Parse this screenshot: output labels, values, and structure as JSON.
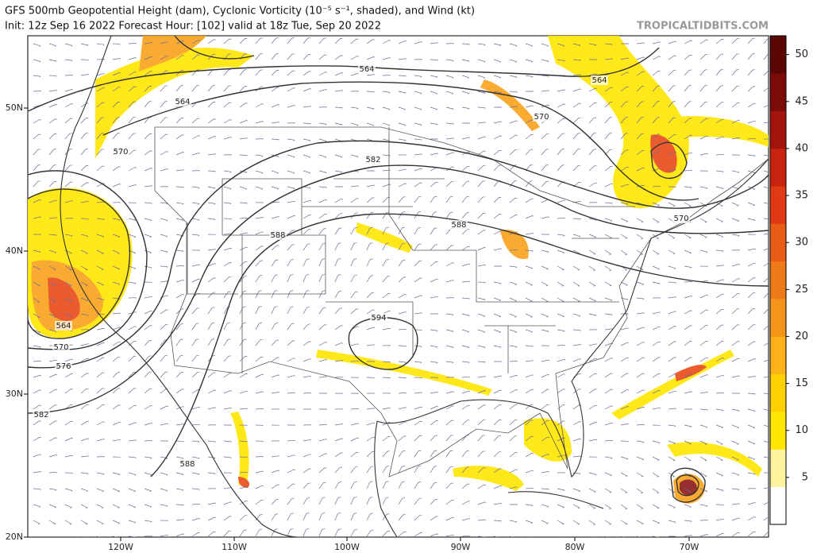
{
  "header": {
    "title": "GFS 500mb Geopotential Height (dam), Cyclonic Vorticity (10⁻⁵ s⁻¹, shaded), and Wind (kt)",
    "subtitle": "Init: 12z Sep 16 2022   Forecast Hour: [102]   valid at 18z Tue, Sep 20 2022",
    "credit": "TROPICALTIDBITS.COM"
  },
  "map": {
    "lat_labels": [
      "50N",
      "40N",
      "30N",
      "20N"
    ],
    "lon_labels": [
      "120W",
      "110W",
      "100W",
      "90W",
      "80W",
      "70W"
    ],
    "contour_labels": [
      "564",
      "564",
      "564",
      "570",
      "570",
      "570",
      "582",
      "588",
      "588",
      "594",
      "564",
      "570",
      "576",
      "582",
      "588"
    ]
  },
  "colorbar": {
    "ticks": [
      5,
      10,
      15,
      20,
      25,
      30,
      35,
      40,
      45,
      50
    ]
  }
}
